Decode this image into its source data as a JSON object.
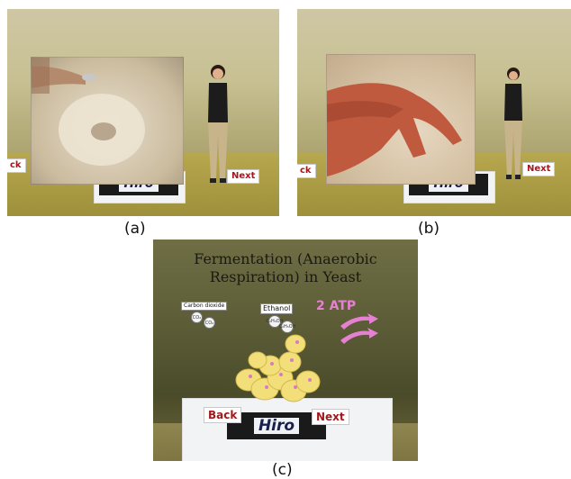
{
  "panels": [
    {
      "id": "a",
      "caption": "(a)",
      "marker_text": "Hiro",
      "back_label": "ck",
      "next_label": "Next",
      "inset_description": "spoon sprinkling yeast onto a plate"
    },
    {
      "id": "b",
      "caption": "(b)",
      "marker_text": "Hiro",
      "back_label": "ck",
      "next_label": "Next",
      "inset_description": "hand mixing yeast"
    },
    {
      "id": "c",
      "caption": "(c)",
      "marker_text": "Hiro",
      "back_label": "Back",
      "next_label": "Next",
      "title": "Fermentation (Anaerobic Respiration) in Yeast",
      "carbon_label": "Carbon dioxide",
      "carbon_mol_a": "CO₂",
      "carbon_mol_b": "CO₂",
      "ethanol_label": "Ethanol",
      "ethanol_mol_a": "C₂H₅OH",
      "ethanol_mol_b": "C₂H₅OH",
      "atp_label": "2 ATP"
    }
  ],
  "colors": {
    "button_text": "#a4181c",
    "atp": "#e680d2",
    "yeast": "#f2df7a"
  }
}
